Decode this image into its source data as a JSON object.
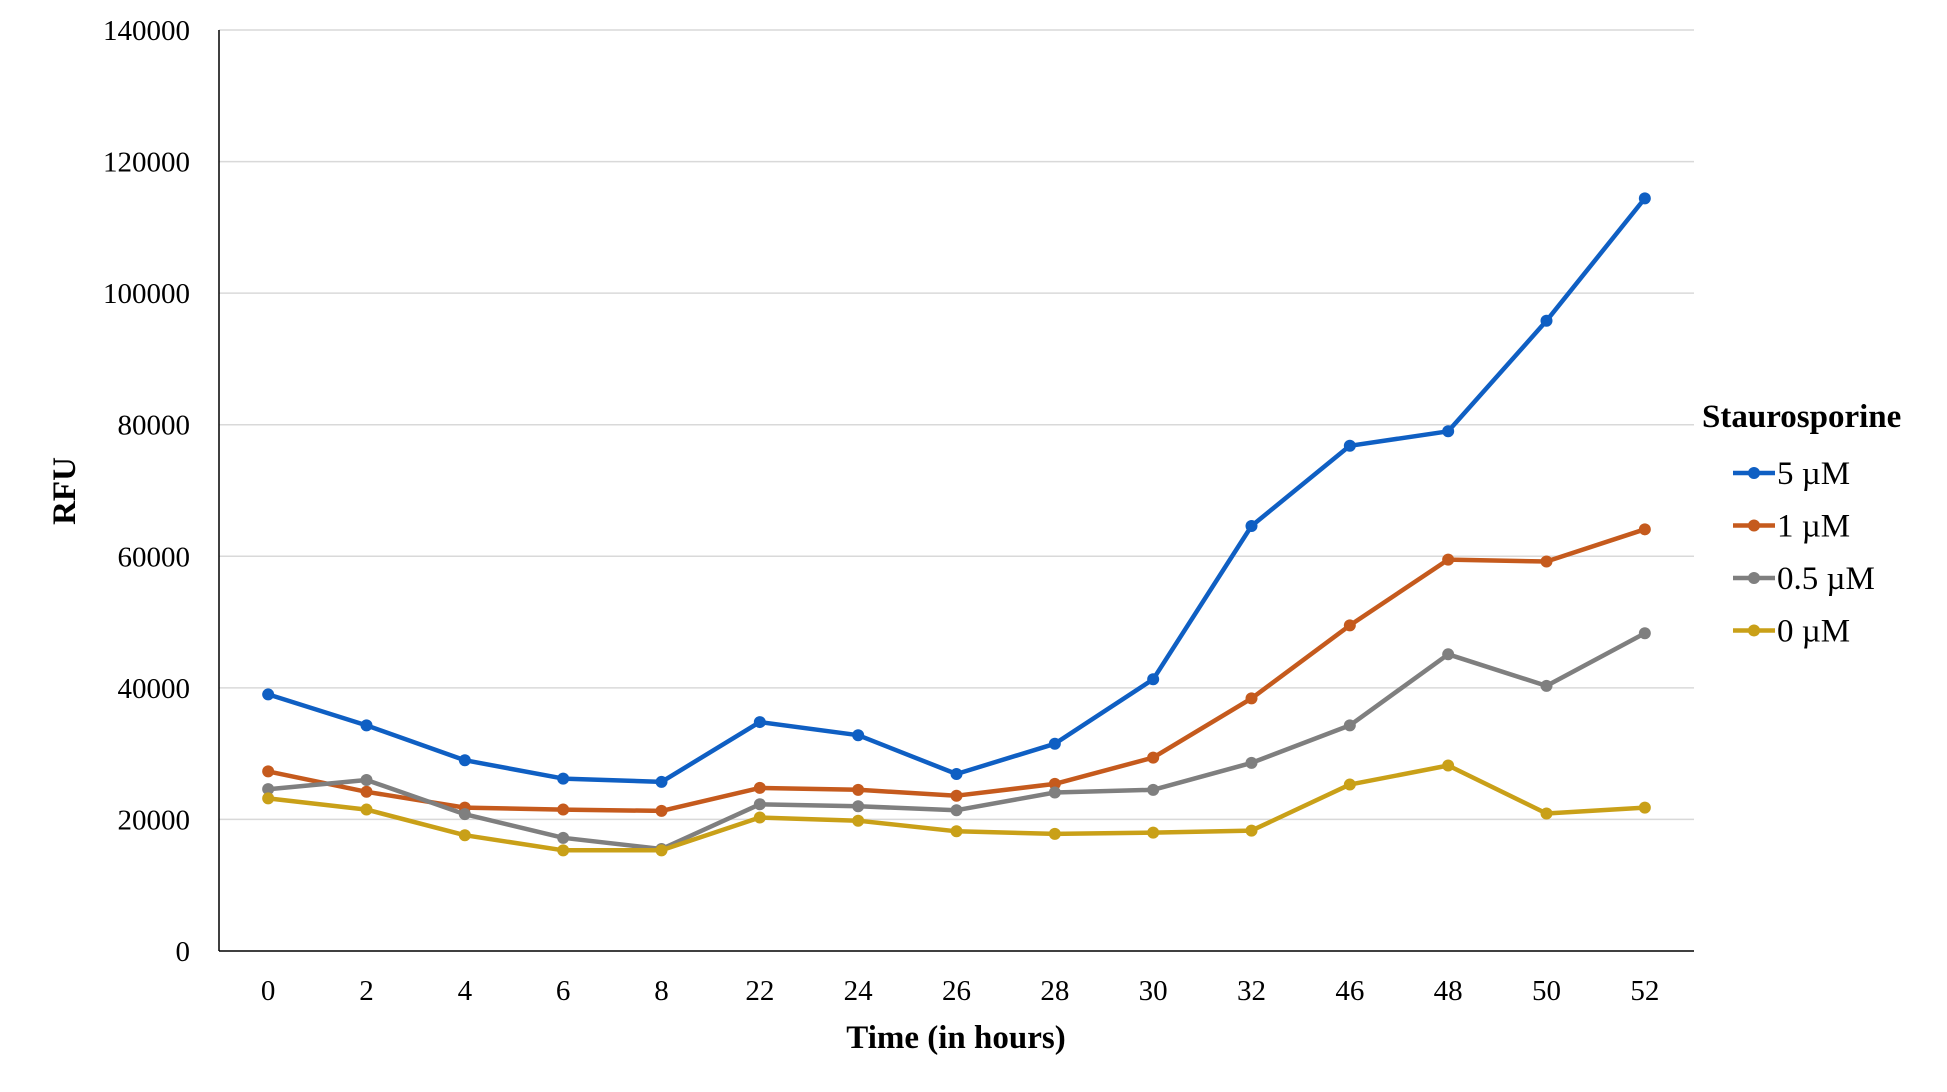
{
  "chart_data": {
    "type": "line",
    "xlabel": "Time (in hours)",
    "ylabel": "RFU",
    "ylim": [
      0,
      140000
    ],
    "y_ticks": [
      0,
      20000,
      40000,
      60000,
      80000,
      100000,
      120000,
      140000
    ],
    "categories": [
      "0",
      "2",
      "4",
      "6",
      "8",
      "22",
      "24",
      "26",
      "28",
      "30",
      "32",
      "46",
      "48",
      "50",
      "52"
    ],
    "grid": "horizontal",
    "legend_title": "Staurosporine",
    "legend_position": "right",
    "series": [
      {
        "name": "5 µM",
        "color": "#0f5fc3",
        "values": [
          39000,
          34300,
          29000,
          26200,
          25700,
          34800,
          32800,
          26900,
          31500,
          41300,
          64600,
          76800,
          79000,
          95800,
          114400
        ]
      },
      {
        "name": "1 µM",
        "color": "#c55a1d",
        "values": [
          27300,
          24200,
          21800,
          21500,
          21300,
          24800,
          24500,
          23600,
          25400,
          29400,
          38400,
          49500,
          59500,
          59200,
          64100
        ]
      },
      {
        "name": "0.5 µM",
        "color": "#7f7f7f",
        "values": [
          24600,
          26000,
          20800,
          17200,
          15500,
          22300,
          22000,
          21400,
          24100,
          24500,
          28600,
          34300,
          45100,
          40300,
          48300
        ]
      },
      {
        "name": "0 µM",
        "color": "#c9a018",
        "values": [
          23200,
          21500,
          17600,
          15300,
          15300,
          20300,
          19800,
          18200,
          17800,
          18000,
          18300,
          25300,
          28200,
          20900,
          21800
        ]
      }
    ]
  }
}
